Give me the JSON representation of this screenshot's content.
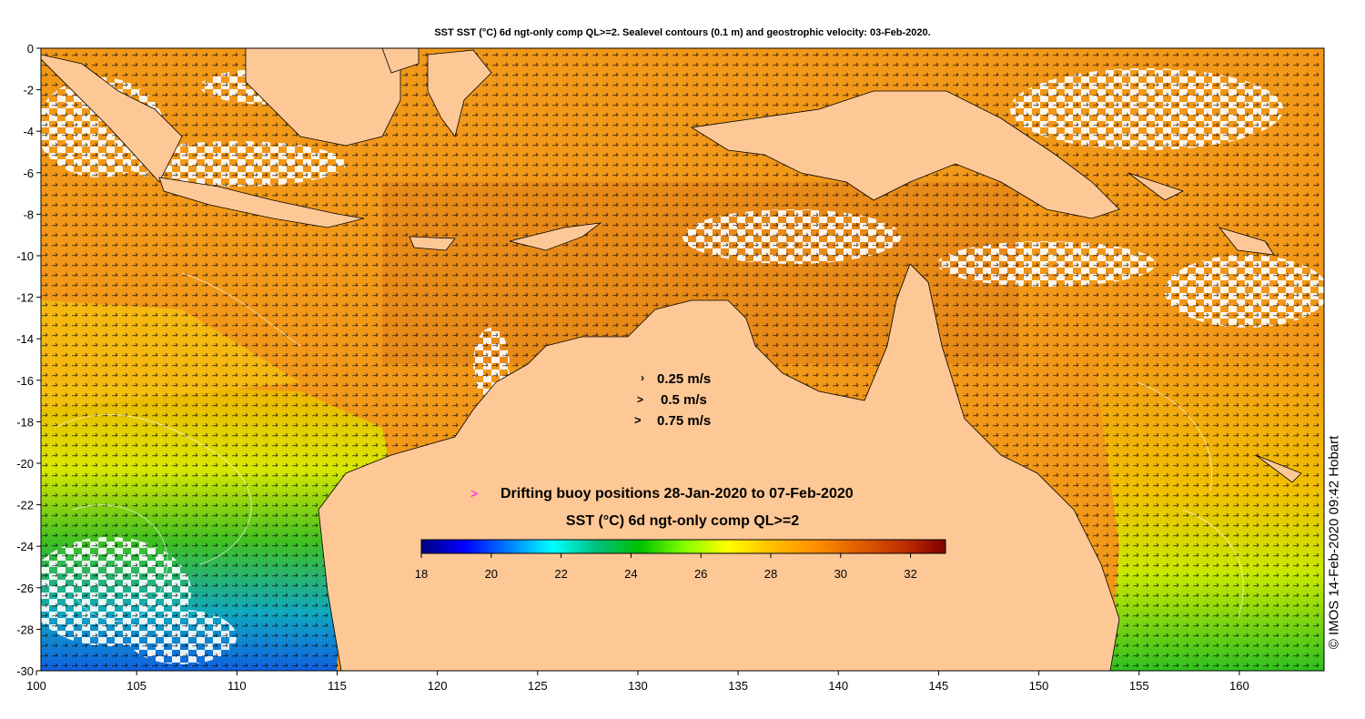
{
  "title": "SST SST (°C) 6d ngt-only comp QL>=2. Sealevel contours (0.1 m) and geostrophic velocity: 03-Feb-2020.",
  "x_axis": {
    "ticks": [
      "100",
      "105",
      "110",
      "115",
      "120",
      "125",
      "130",
      "135",
      "140",
      "145",
      "150",
      "155",
      "160"
    ],
    "range": [
      100,
      164
    ]
  },
  "y_axis": {
    "ticks": [
      "0",
      "-2",
      "-4",
      "-6",
      "-8",
      "-10",
      "-12",
      "-14",
      "-16",
      "-18",
      "-20",
      "-22",
      "-24",
      "-26",
      "-28",
      "-30"
    ],
    "range": [
      -30,
      0
    ]
  },
  "velocity_legend": [
    "0.25 m/s",
    "0.5 m/s",
    "0.75 m/s"
  ],
  "buoy_legend": {
    "marker": ">",
    "label": "Drifting buoy positions 28-Jan-2020 to 07-Feb-2020",
    "color": "#ff00ff"
  },
  "colorbar": {
    "title": "SST (°C) 6d ngt-only comp QL>=2",
    "ticks": [
      "18",
      "20",
      "22",
      "24",
      "26",
      "28",
      "30",
      "32"
    ],
    "range": [
      18,
      33
    ],
    "colors": [
      "#00007f",
      "#0000ff",
      "#007fff",
      "#00ffff",
      "#00c080",
      "#00c000",
      "#80ff00",
      "#ffff00",
      "#ffc000",
      "#ff9000",
      "#e06000",
      "#c03000",
      "#800000"
    ]
  },
  "credit": "© IMOS 14-Feb-2020 09:42 Hobart",
  "colors": {
    "land": "#fdc896",
    "ocean_warm": "#f29818",
    "ocean_hot": "#e07818",
    "ocean_green": "#30c000",
    "ocean_yellow": "#e0f000",
    "ocean_blue": "#1090e0"
  }
}
